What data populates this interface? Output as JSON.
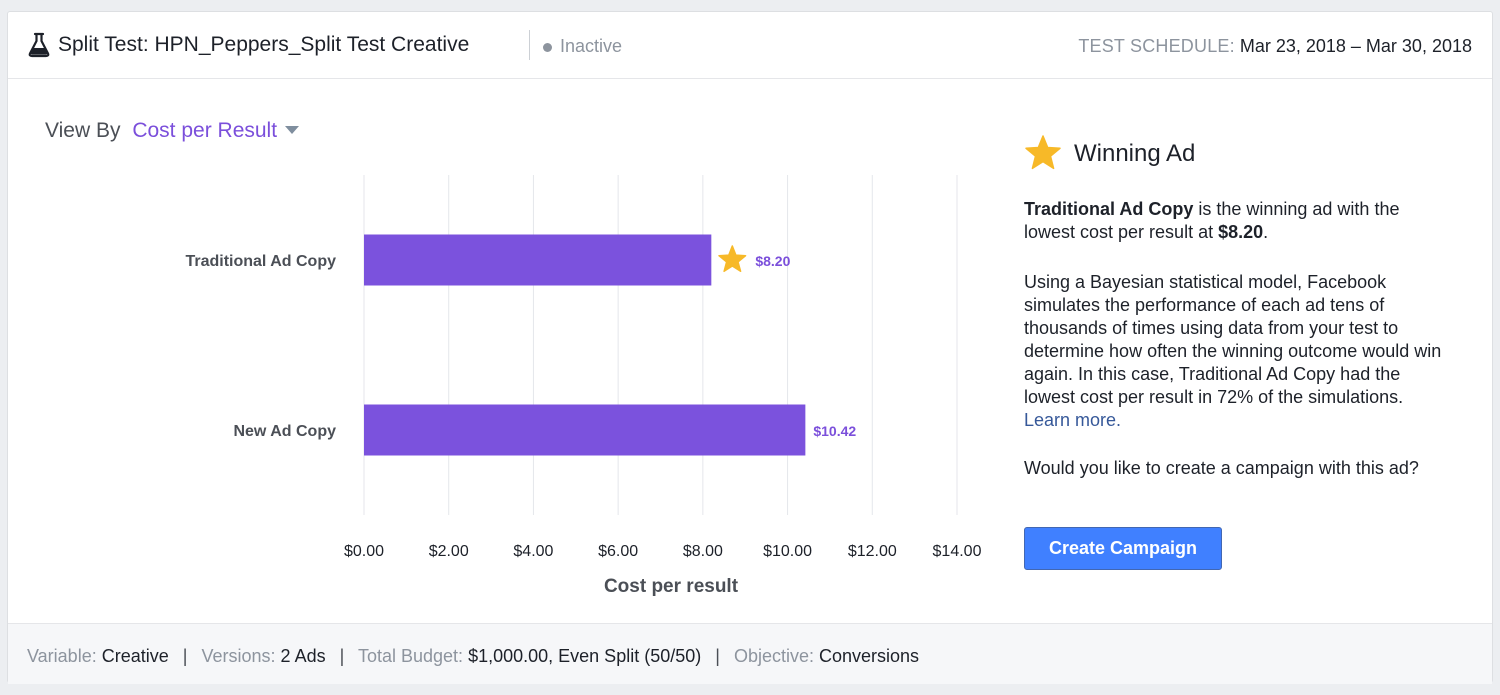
{
  "header": {
    "title": "Split Test: HPN_Peppers_Split Test Creative",
    "status": "Inactive",
    "schedule_label": "TEST SCHEDULE:",
    "schedule_value": "Mar 23, 2018 – Mar 30, 2018"
  },
  "view_by": {
    "label": "View By",
    "selected": "Cost per Result"
  },
  "chart_data": {
    "type": "bar",
    "orientation": "horizontal",
    "categories": [
      "Traditional Ad Copy",
      "New Ad Copy"
    ],
    "values": [
      8.2,
      10.42
    ],
    "value_labels": [
      "$8.20",
      "$10.42"
    ],
    "winner": "Traditional Ad Copy",
    "xlabel": "Cost per result",
    "xlim": [
      0,
      14
    ],
    "xticks": [
      "$0.00",
      "$2.00",
      "$4.00",
      "$6.00",
      "$8.00",
      "$10.00",
      "$12.00",
      "$14.00"
    ],
    "grid": true,
    "bar_color": "#7b52dd",
    "label_color": "#7b4fdb",
    "star_color": "#f7b928"
  },
  "winning": {
    "title": "Winning Ad",
    "ad_name": "Traditional Ad Copy",
    "p1_mid": " is the winning ad with the lowest cost per result at ",
    "p1_value": "$8.20",
    "p1_end": ".",
    "p2": "Using a Bayesian statistical model, Facebook simulates the performance of each ad tens of thousands of times using data from your test to determine how often the winning outcome would win again. In this case, Traditional Ad Copy had the lowest cost per result in 72% of the simulations.",
    "learn_more": "Learn more.",
    "p3": "Would you like to create a campaign with this ad?",
    "button": "Create Campaign"
  },
  "footer": {
    "variable_label": "Variable:",
    "variable_value": "Creative",
    "versions_label": "Versions:",
    "versions_value": "2 Ads",
    "budget_label": "Total Budget:",
    "budget_value": "$1,000.00, Even Split (50/50)",
    "objective_label": "Objective:",
    "objective_value": "Conversions",
    "separator": "|"
  }
}
